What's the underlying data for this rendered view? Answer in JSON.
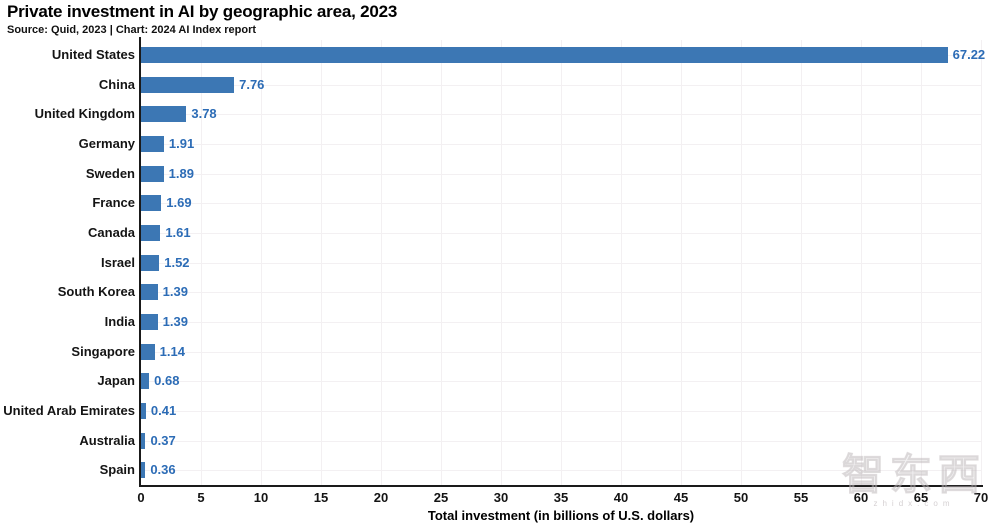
{
  "header": {
    "title": "Private investment in AI by geographic area, 2023",
    "subtitle": "Source: Quid, 2023 | Chart: 2024 AI Index report"
  },
  "chart_data": {
    "type": "bar",
    "orientation": "horizontal",
    "title": "Private investment in AI by geographic area, 2023",
    "subtitle": "Source: Quid, 2023 | Chart: 2024 AI Index report",
    "categories": [
      "United States",
      "China",
      "United Kingdom",
      "Germany",
      "Sweden",
      "France",
      "Canada",
      "Israel",
      "South Korea",
      "India",
      "Singapore",
      "Japan",
      "United Arab Emirates",
      "Australia",
      "Spain"
    ],
    "values": [
      67.22,
      7.76,
      3.78,
      1.91,
      1.89,
      1.69,
      1.61,
      1.52,
      1.39,
      1.39,
      1.14,
      0.68,
      0.41,
      0.37,
      0.36
    ],
    "value_labels": [
      "67.22",
      "7.76",
      "3.78",
      "1.91",
      "1.89",
      "1.69",
      "1.61",
      "1.52",
      "1.39",
      "1.39",
      "1.14",
      "0.68",
      "0.41",
      "0.37",
      "0.36"
    ],
    "xlabel": "Total investment (in billions of U.S. dollars)",
    "ylabel": "",
    "xlim": [
      0,
      70
    ],
    "xticks": [
      0,
      5,
      10,
      15,
      20,
      25,
      30,
      35,
      40,
      45,
      50,
      55,
      60,
      65,
      70
    ],
    "grid": true,
    "legend": "none",
    "colors": {
      "bar": "#3c77b4",
      "value_label": "#2c6cb6",
      "gridline": "#f3f0f2",
      "spine": "#1a1a1a",
      "text": "#141414"
    }
  },
  "watermark": {
    "text": "智东西",
    "subtext": "zhidx.com"
  }
}
